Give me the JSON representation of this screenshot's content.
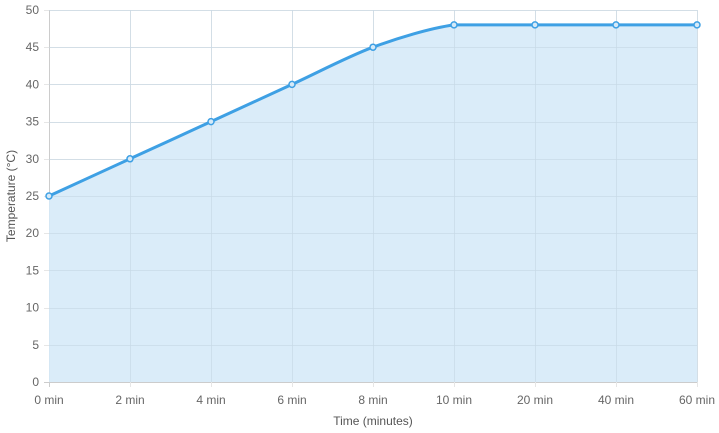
{
  "chart_data": {
    "type": "area",
    "title": "",
    "xlabel": "Time (minutes)",
    "ylabel": "Temperature (°C)",
    "categories": [
      "0 min",
      "2 min",
      "4 min",
      "6 min",
      "8 min",
      "10 min",
      "20 min",
      "40 min",
      "60 min"
    ],
    "series": [
      {
        "values": [
          25,
          30,
          35,
          40,
          45,
          48,
          48,
          48,
          48
        ]
      }
    ],
    "ylim": [
      0,
      50
    ],
    "y_ticks": [
      0,
      5,
      10,
      15,
      20,
      25,
      30,
      35,
      40,
      45,
      50
    ],
    "grid": true,
    "legend": "none",
    "colors": {
      "line": "#3ea0e4",
      "fill": "#d6eaf8",
      "grid": "#e6e6e6",
      "axis": "#cccccc",
      "text": "#666666"
    }
  }
}
